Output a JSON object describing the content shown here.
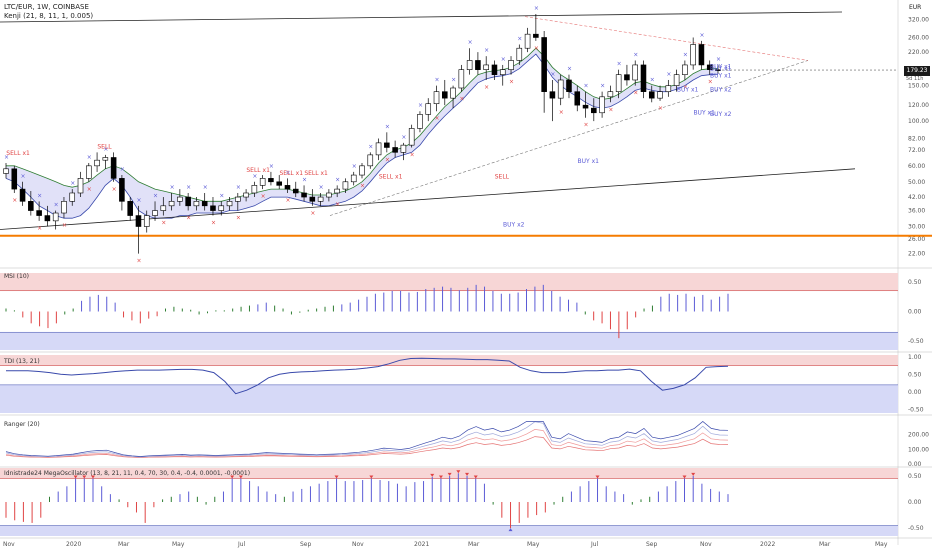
{
  "header": {
    "symbol_line": "LTC/EUR, 1W, COINBASE",
    "indicator_line": "Kenji (21, 8, 11, 1, 0.005)",
    "currency": "EUR"
  },
  "price_badge": {
    "value": "179.23",
    "sub": "5d 11h"
  },
  "panes": {
    "msi": "MSI (10)",
    "tdi": "TDI (13, 21)",
    "ranger": "Ranger (20)",
    "mega": "Idnistrade24 MegaOscillator (13, 8, 21, 11, 0.4, 70, 30, 0.4, -0.4, 0.0001, -0.0001)"
  },
  "colors": {
    "up": "#ffffff",
    "down": "#000000",
    "buy": "#5b5bd6",
    "sell": "#e04444",
    "orange": "#f57c00",
    "blue_band": "#d6d9f7",
    "red_band": "#f7d6d6"
  },
  "chart_data": {
    "type": "candlestick",
    "x_ticks": [
      "Nov",
      "2020",
      "Mar",
      "May",
      "Jul",
      "Sep",
      "Nov",
      "2021",
      "Mar",
      "May",
      "Jul",
      "Sep",
      "Nov",
      "2022",
      "Mar",
      "May"
    ],
    "price_ticks": [
      320,
      260,
      220,
      179.23,
      150,
      120,
      100,
      82,
      72,
      60,
      50,
      42,
      36,
      30,
      26,
      22
    ],
    "horizontal_level": 27,
    "candles": [
      [
        55,
        62,
        52,
        58
      ],
      [
        58,
        60,
        44,
        46
      ],
      [
        46,
        50,
        38,
        40
      ],
      [
        40,
        45,
        34,
        36
      ],
      [
        36,
        40,
        32,
        34
      ],
      [
        34,
        38,
        30,
        32
      ],
      [
        32,
        36,
        29,
        35
      ],
      [
        35,
        42,
        33,
        40
      ],
      [
        40,
        46,
        38,
        44
      ],
      [
        44,
        56,
        42,
        52
      ],
      [
        52,
        62,
        50,
        60
      ],
      [
        60,
        70,
        56,
        64
      ],
      [
        64,
        68,
        58,
        66
      ],
      [
        66,
        70,
        50,
        52
      ],
      [
        52,
        54,
        36,
        40
      ],
      [
        40,
        42,
        32,
        34
      ],
      [
        34,
        38,
        22,
        30
      ],
      [
        30,
        36,
        28,
        34
      ],
      [
        34,
        40,
        32,
        36
      ],
      [
        36,
        42,
        34,
        38
      ],
      [
        38,
        44,
        36,
        40
      ],
      [
        40,
        46,
        38,
        42
      ],
      [
        42,
        44,
        36,
        38
      ],
      [
        38,
        42,
        36,
        40
      ],
      [
        40,
        44,
        36,
        38
      ],
      [
        38,
        42,
        34,
        36
      ],
      [
        36,
        40,
        34,
        38
      ],
      [
        38,
        42,
        36,
        40
      ],
      [
        40,
        44,
        36,
        42
      ],
      [
        42,
        46,
        40,
        44
      ],
      [
        44,
        50,
        42,
        48
      ],
      [
        48,
        54,
        46,
        52
      ],
      [
        52,
        56,
        48,
        50
      ],
      [
        50,
        54,
        46,
        48
      ],
      [
        48,
        52,
        44,
        46
      ],
      [
        46,
        50,
        42,
        44
      ],
      [
        44,
        48,
        40,
        42
      ],
      [
        42,
        46,
        38,
        40
      ],
      [
        40,
        44,
        38,
        42
      ],
      [
        42,
        46,
        40,
        44
      ],
      [
        44,
        48,
        42,
        46
      ],
      [
        46,
        52,
        44,
        50
      ],
      [
        50,
        56,
        48,
        54
      ],
      [
        54,
        62,
        52,
        60
      ],
      [
        60,
        70,
        58,
        68
      ],
      [
        68,
        82,
        64,
        78
      ],
      [
        78,
        88,
        70,
        74
      ],
      [
        74,
        80,
        66,
        70
      ],
      [
        70,
        78,
        64,
        76
      ],
      [
        76,
        96,
        74,
        92
      ],
      [
        92,
        112,
        88,
        108
      ],
      [
        108,
        130,
        100,
        122
      ],
      [
        122,
        150,
        112,
        140
      ],
      [
        140,
        160,
        120,
        130
      ],
      [
        130,
        150,
        116,
        146
      ],
      [
        146,
        190,
        140,
        180
      ],
      [
        180,
        230,
        170,
        200
      ],
      [
        200,
        220,
        170,
        180
      ],
      [
        180,
        210,
        160,
        190
      ],
      [
        190,
        200,
        160,
        170
      ],
      [
        170,
        190,
        150,
        180
      ],
      [
        180,
        210,
        170,
        200
      ],
      [
        200,
        240,
        190,
        230
      ],
      [
        230,
        290,
        220,
        270
      ],
      [
        270,
        340,
        250,
        260
      ],
      [
        260,
        280,
        110,
        140
      ],
      [
        140,
        160,
        100,
        130
      ],
      [
        130,
        170,
        120,
        160
      ],
      [
        160,
        170,
        130,
        140
      ],
      [
        140,
        150,
        112,
        120
      ],
      [
        120,
        140,
        104,
        116
      ],
      [
        116,
        130,
        100,
        110
      ],
      [
        110,
        140,
        104,
        132
      ],
      [
        132,
        150,
        124,
        140
      ],
      [
        140,
        180,
        130,
        170
      ],
      [
        170,
        190,
        150,
        160
      ],
      [
        160,
        200,
        150,
        190
      ],
      [
        190,
        200,
        130,
        140
      ],
      [
        140,
        150,
        124,
        130
      ],
      [
        130,
        150,
        126,
        140
      ],
      [
        140,
        160,
        132,
        150
      ],
      [
        150,
        180,
        140,
        170
      ],
      [
        170,
        200,
        160,
        190
      ],
      [
        190,
        260,
        180,
        240
      ],
      [
        240,
        250,
        180,
        190
      ],
      [
        190,
        200,
        170,
        180
      ],
      [
        180,
        190,
        172,
        179
      ]
    ],
    "kenji": {
      "x_start": 0,
      "upper": [
        60,
        60,
        58,
        56,
        54,
        52,
        50,
        48,
        47,
        48,
        50,
        54,
        58,
        60,
        58,
        54,
        50,
        48,
        46,
        45,
        44,
        43,
        42,
        41,
        40,
        40,
        40,
        41,
        42,
        43,
        44,
        45,
        46,
        46,
        46,
        45,
        44,
        43,
        43,
        43,
        44,
        45,
        47,
        50,
        55,
        62,
        68,
        72,
        74,
        78,
        85,
        95,
        106,
        118,
        128,
        140,
        155,
        170,
        175,
        178,
        180,
        185,
        195,
        210,
        230,
        210,
        185,
        170,
        160,
        150,
        140,
        132,
        128,
        130,
        136,
        145,
        155,
        158,
        152,
        148,
        148,
        152,
        160,
        172,
        180,
        182,
        182
      ],
      "lower": [
        52,
        50,
        46,
        42,
        38,
        36,
        34,
        33,
        33,
        34,
        37,
        42,
        48,
        52,
        48,
        42,
        36,
        34,
        33,
        33,
        33,
        34,
        34,
        35,
        35,
        35,
        35,
        36,
        36,
        37,
        38,
        40,
        42,
        42,
        42,
        41,
        40,
        39,
        38,
        38,
        39,
        40,
        42,
        45,
        50,
        56,
        62,
        66,
        68,
        70,
        76,
        86,
        96,
        106,
        116,
        126,
        140,
        155,
        162,
        166,
        168,
        172,
        182,
        198,
        215,
        190,
        165,
        150,
        140,
        132,
        124,
        118,
        116,
        118,
        124,
        132,
        142,
        146,
        142,
        140,
        140,
        144,
        150,
        160,
        168,
        170,
        171
      ]
    },
    "signals": [
      {
        "t": "SELL x1",
        "i": 1,
        "p": 68,
        "k": "sell"
      },
      {
        "t": "SELL",
        "i": 12,
        "p": 73,
        "k": "sell"
      },
      {
        "t": "SELL x1",
        "i": 30,
        "p": 56,
        "k": "sell"
      },
      {
        "t": "SELL x1",
        "i": 34,
        "p": 54,
        "k": "sell"
      },
      {
        "t": "SELL x1",
        "i": 37,
        "p": 54,
        "k": "sell"
      },
      {
        "t": "SELL x1",
        "i": 46,
        "p": 52,
        "k": "sell"
      },
      {
        "t": "SELL",
        "i": 60,
        "p": 52,
        "k": "sell"
      },
      {
        "t": "BUY x2",
        "i": 61,
        "p": 30,
        "k": "buy"
      },
      {
        "t": "BUY x1",
        "i": 70,
        "p": 62,
        "k": "buy"
      },
      {
        "t": "BUY x1",
        "i": 84,
        "p": 108,
        "k": "buy"
      },
      {
        "t": "BUY x1",
        "i": 82,
        "p": 140,
        "k": "buy"
      },
      {
        "t": "BUY x1",
        "i": 90,
        "p": 178,
        "k": "buy"
      },
      {
        "t": "BUY x1",
        "i": 95,
        "p": 182,
        "k": "buy"
      },
      {
        "t": "BUY x2",
        "i": 123,
        "p": 140,
        "k": "buy"
      },
      {
        "t": "BUY x2",
        "i": 123,
        "p": 106,
        "k": "buy"
      },
      {
        "t": "BUY x1",
        "i": 133,
        "p": 165,
        "k": "buy"
      }
    ],
    "msi": [
      0.05,
      0.02,
      -0.1,
      -0.2,
      -0.25,
      -0.28,
      -0.2,
      -0.05,
      0.05,
      0.18,
      0.25,
      0.28,
      0.25,
      0.15,
      -0.1,
      -0.15,
      -0.2,
      -0.12,
      -0.08,
      0.05,
      0.08,
      0.05,
      0.03,
      -0.05,
      -0.03,
      0.02,
      0.02,
      0.05,
      0.08,
      0.1,
      0.12,
      0.15,
      0.1,
      0.05,
      -0.05,
      -0.02,
      0.03,
      0.05,
      0.08,
      0.1,
      0.12,
      0.15,
      0.2,
      0.25,
      0.3,
      0.32,
      0.35,
      0.35,
      0.32,
      0.33,
      0.38,
      0.4,
      0.42,
      0.4,
      0.36,
      0.4,
      0.45,
      0.42,
      0.35,
      0.3,
      0.3,
      0.32,
      0.38,
      0.42,
      0.45,
      0.35,
      0.25,
      0.2,
      0.15,
      -0.05,
      -0.15,
      -0.2,
      -0.3,
      -0.45,
      -0.3,
      -0.1,
      0.05,
      0.1,
      0.25,
      0.3,
      0.28,
      0.3,
      0.25,
      0.28,
      0.2,
      0.25,
      0.3
    ],
    "tdi": [
      0.6,
      0.6,
      0.6,
      0.58,
      0.55,
      0.5,
      0.48,
      0.5,
      0.52,
      0.55,
      0.58,
      0.6,
      0.62,
      0.62,
      0.62,
      0.63,
      0.64,
      0.64,
      0.62,
      0.55,
      0.3,
      -0.05,
      0.05,
      0.2,
      0.4,
      0.5,
      0.55,
      0.57,
      0.58,
      0.6,
      0.62,
      0.63,
      0.65,
      0.68,
      0.72,
      0.8,
      0.9,
      0.95,
      0.96,
      0.95,
      0.94,
      0.94,
      0.93,
      0.92,
      0.92,
      0.9,
      0.88,
      0.7,
      0.6,
      0.55,
      0.55,
      0.55,
      0.58,
      0.6,
      0.6,
      0.62,
      0.62,
      0.65,
      0.6,
      0.3,
      0.05,
      0.1,
      0.2,
      0.4,
      0.7,
      0.72,
      0.73
    ],
    "ranger": {
      "levels": [
        250,
        200,
        175,
        150
      ],
      "note": ""
    },
    "mega": [
      -0.3,
      -0.35,
      -0.38,
      -0.4,
      -0.3,
      0.1,
      0.2,
      0.3,
      0.45,
      0.45,
      0.45,
      0.3,
      0.15,
      0.05,
      -0.1,
      -0.2,
      -0.4,
      -0.1,
      0.05,
      0.1,
      0.15,
      0.2,
      0.1,
      -0.05,
      0.1,
      0.2,
      0.45,
      0.45,
      0.4,
      0.3,
      0.2,
      0.15,
      0.1,
      0.2,
      0.25,
      0.3,
      0.35,
      0.4,
      0.45,
      0.4,
      0.4,
      0.42,
      0.45,
      0.42,
      0.4,
      0.35,
      0.3,
      0.38,
      0.4,
      0.48,
      0.45,
      0.5,
      0.55,
      0.5,
      0.45,
      0.35,
      -0.05,
      -0.3,
      -0.5,
      -0.4,
      -0.3,
      -0.25,
      -0.2,
      -0.05,
      0.1,
      0.2,
      0.3,
      0.4,
      0.45,
      0.3,
      0.2,
      0.15,
      -0.05,
      0.05,
      0.1,
      0.2,
      0.3,
      0.4,
      0.45,
      0.5,
      0.35,
      0.25,
      0.2,
      0.15
    ],
    "osc_ticks": [
      0.5,
      0,
      -0.5
    ],
    "tdi_ticks": [
      1,
      0.5,
      0,
      -0.5
    ],
    "ranger_ticks": [
      200,
      100,
      0
    ]
  }
}
